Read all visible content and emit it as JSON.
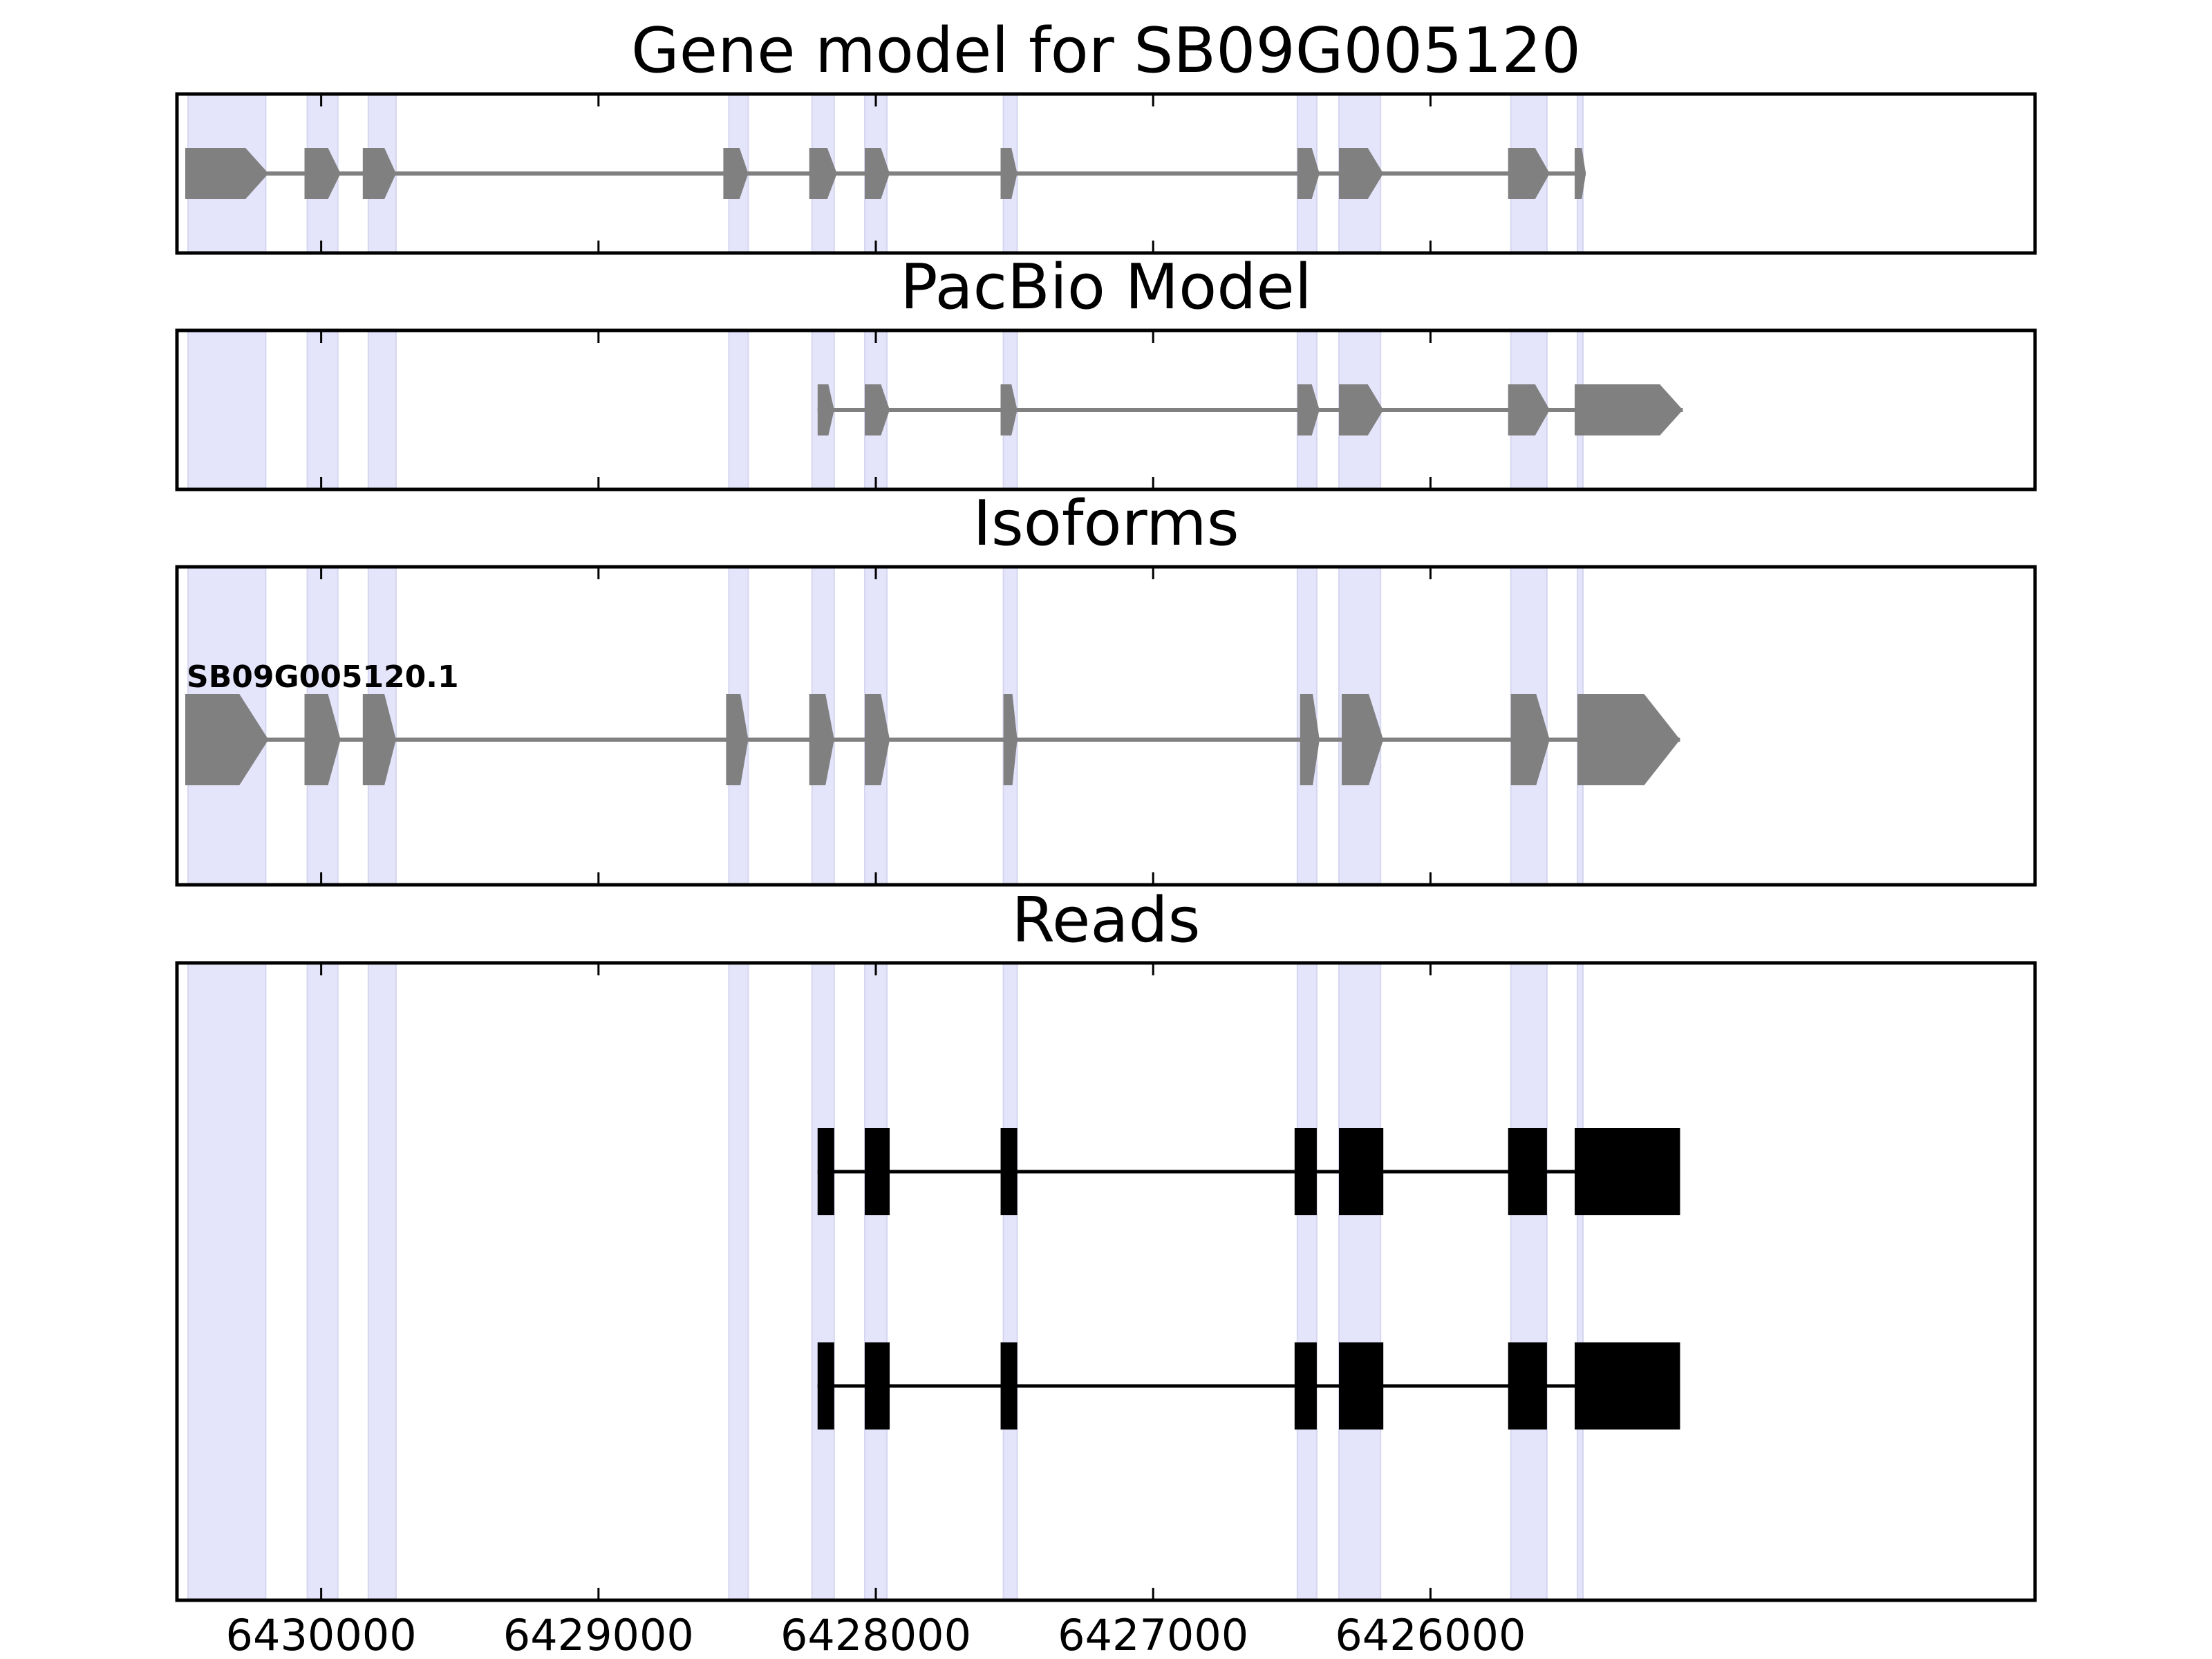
{
  "chart_data": {
    "type": "gene-structure",
    "x_axis": {
      "reversed": true,
      "xlim": [
        6430520,
        6423820
      ],
      "ticks": [
        6430000,
        6429000,
        6428000,
        6427000,
        6426000
      ],
      "tick_labels": [
        "6430000",
        "6429000",
        "6428000",
        "6427000",
        "6426000"
      ]
    },
    "colors": {
      "exon_model": "#808080",
      "intron_model": "#808080",
      "read_exon": "#000000",
      "read_intron": "#000000",
      "highlight": "#e4e4fa",
      "frame": "#000000",
      "background": "#ffffff"
    },
    "highlight_regions": [
      [
        6430480,
        6430200
      ],
      [
        6430050,
        6429940
      ],
      [
        6429830,
        6429730
      ],
      [
        6428530,
        6428460
      ],
      [
        6428230,
        6428150
      ],
      [
        6428040,
        6427960
      ],
      [
        6427540,
        6427490
      ],
      [
        6426480,
        6426410
      ],
      [
        6426330,
        6426180
      ],
      [
        6425710,
        6425580
      ],
      [
        6425470,
        6425450
      ]
    ],
    "panels": [
      {
        "title": "Gene model for SB09G005120",
        "kind": "model",
        "rows": [
          {
            "label": "",
            "exons": [
              [
                6430490,
                6430190
              ],
              [
                6430060,
                6429930
              ],
              [
                6429850,
                6429730
              ],
              [
                6428550,
                6428460
              ],
              [
                6428240,
                6428140
              ],
              [
                6428040,
                6427950
              ],
              [
                6427550,
                6427490
              ],
              [
                6426480,
                6426400
              ],
              [
                6426330,
                6426170
              ],
              [
                6425720,
                6425570
              ],
              [
                6425480,
                6425440
              ]
            ]
          }
        ]
      },
      {
        "title": "PacBio Model",
        "kind": "model",
        "rows": [
          {
            "label": "",
            "exons": [
              [
                6428210,
                6428150
              ],
              [
                6428040,
                6427950
              ],
              [
                6427550,
                6427490
              ],
              [
                6426480,
                6426400
              ],
              [
                6426330,
                6426170
              ],
              [
                6425720,
                6425570
              ],
              [
                6425480,
                6425090
              ]
            ]
          }
        ]
      },
      {
        "title": "Isoforms",
        "kind": "model",
        "rows": [
          {
            "label": "SB09G005120.1",
            "exons": [
              [
                6430490,
                6430190
              ],
              [
                6430060,
                6429930
              ],
              [
                6429850,
                6429730
              ],
              [
                6428540,
                6428460
              ],
              [
                6428240,
                6428150
              ],
              [
                6428040,
                6427950
              ],
              [
                6427540,
                6427490
              ],
              [
                6426470,
                6426400
              ],
              [
                6426320,
                6426170
              ],
              [
                6425710,
                6425570
              ],
              [
                6425470,
                6425100
              ]
            ]
          }
        ]
      },
      {
        "title": "Reads",
        "kind": "reads",
        "rows": [
          {
            "label": "",
            "exons": [
              [
                6428210,
                6428150
              ],
              [
                6428040,
                6427950
              ],
              [
                6427550,
                6427490
              ],
              [
                6426490,
                6426410
              ],
              [
                6426330,
                6426170
              ],
              [
                6425720,
                6425580
              ],
              [
                6425480,
                6425100
              ]
            ]
          },
          {
            "label": "",
            "exons": [
              [
                6428210,
                6428150
              ],
              [
                6428040,
                6427950
              ],
              [
                6427550,
                6427490
              ],
              [
                6426490,
                6426410
              ],
              [
                6426330,
                6426170
              ],
              [
                6425720,
                6425580
              ],
              [
                6425480,
                6425100
              ]
            ]
          }
        ]
      }
    ]
  }
}
